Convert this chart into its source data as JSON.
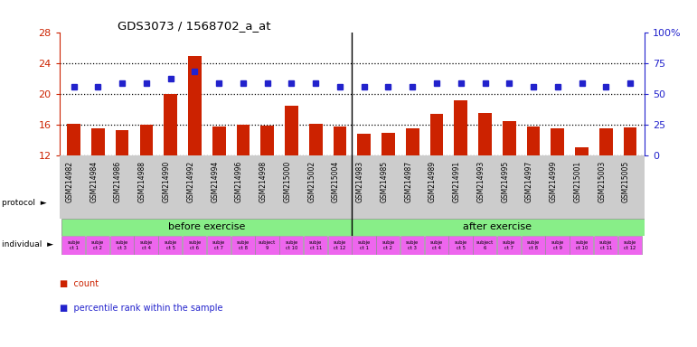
{
  "title": "GDS3073 / 1568702_a_at",
  "samples": [
    "GSM214982",
    "GSM214984",
    "GSM214986",
    "GSM214988",
    "GSM214990",
    "GSM214992",
    "GSM214994",
    "GSM214996",
    "GSM214998",
    "GSM215000",
    "GSM215002",
    "GSM215004",
    "GSM214983",
    "GSM214985",
    "GSM214987",
    "GSM214989",
    "GSM214991",
    "GSM214993",
    "GSM214995",
    "GSM214997",
    "GSM214999",
    "GSM215001",
    "GSM215003",
    "GSM215005"
  ],
  "bar_values": [
    16.1,
    15.5,
    15.3,
    16.0,
    20.0,
    25.0,
    15.8,
    16.0,
    15.9,
    18.5,
    16.1,
    15.8,
    14.8,
    15.0,
    15.5,
    17.4,
    19.2,
    17.6,
    16.5,
    15.8,
    15.5,
    13.0,
    15.5,
    15.7
  ],
  "dot_values": [
    21.0,
    21.0,
    21.5,
    21.5,
    22.0,
    23.0,
    21.5,
    21.5,
    21.5,
    21.5,
    21.5,
    21.0,
    21.0,
    21.0,
    21.0,
    21.5,
    21.5,
    21.5,
    21.5,
    21.0,
    21.0,
    21.5,
    21.0,
    21.5
  ],
  "ylim_left": [
    12,
    28
  ],
  "ylim_right": [
    0,
    100
  ],
  "yticks_left": [
    12,
    16,
    20,
    24,
    28
  ],
  "yticks_right": [
    0,
    25,
    50,
    75,
    100
  ],
  "bar_color": "#cc2200",
  "dot_color": "#2222cc",
  "bar_bottom": 12,
  "protocol_before": "before exercise",
  "protocol_after": "after exercise",
  "before_count": 12,
  "after_count": 12,
  "individuals_before": [
    "subje\nct 1",
    "subje\nct 2",
    "subje\nct 3",
    "subje\nct 4",
    "subje\nct 5",
    "subje\nct 6",
    "subje\nct 7",
    "subje\nct 8",
    "subject\n9",
    "subje\nct 10",
    "subje\nct 11",
    "subje\nct 12"
  ],
  "individuals_after": [
    "subje\nct 1",
    "subje\nct 2",
    "subje\nct 3",
    "subje\nct 4",
    "subje\nct 5",
    "subject\n6",
    "subje\nct 7",
    "subje\nct 8",
    "subje\nct 9",
    "subje\nct 10",
    "subje\nct 11",
    "subje\nct 12"
  ],
  "indiv_colors_before": [
    "#ee66ee",
    "#ee66ee",
    "#ee66ee",
    "#ee66ee",
    "#ee66ee",
    "#ee66ee",
    "#ee66ee",
    "#ee66ee",
    "#ee66ee",
    "#ee66ee",
    "#ee66ee",
    "#ee66ee"
  ],
  "indiv_colors_after": [
    "#ee66ee",
    "#ee66ee",
    "#ee66ee",
    "#ee66ee",
    "#ee66ee",
    "#ee66ee",
    "#ee66ee",
    "#ee66ee",
    "#ee66ee",
    "#ee66ee",
    "#ee66ee",
    "#ee66ee"
  ],
  "protocol_color_before": "#88ee88",
  "protocol_color_after": "#88ee88",
  "xtick_bg_color": "#cccccc",
  "background_color": "#ffffff",
  "left_axis_color": "#cc2200",
  "right_axis_color": "#2222cc",
  "legend_count": "count",
  "legend_pct": "percentile rank within the sample"
}
